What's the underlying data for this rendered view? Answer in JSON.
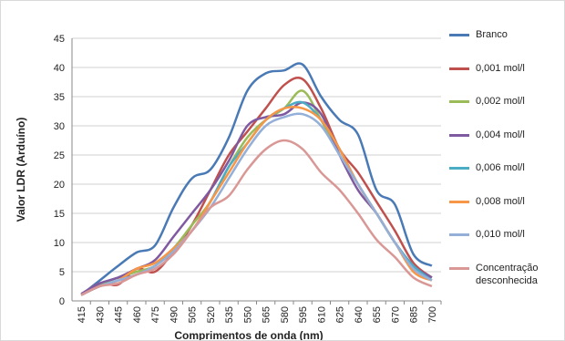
{
  "chart_data": {
    "type": "line",
    "x_label": "Comprimentos de onda (nm)",
    "y_label": "Valor LDR (Arduíno)",
    "categories": [
      "415",
      "430",
      "445",
      "460",
      "475",
      "490",
      "505",
      "520",
      "535",
      "550",
      "565",
      "580",
      "595",
      "610",
      "625",
      "640",
      "655",
      "670",
      "685",
      "700"
    ],
    "ylim": [
      0,
      45
    ],
    "yticks": [
      0,
      5,
      10,
      15,
      20,
      25,
      30,
      35,
      40,
      45
    ],
    "grid": true,
    "series": [
      {
        "name": "Branco",
        "color": "#4a7ab5",
        "values": [
          1,
          3.5,
          6,
          8.3,
          9.5,
          16,
          21,
          22.5,
          28,
          36,
          39,
          39.5,
          40.5,
          35,
          31,
          28.5,
          19,
          16.5,
          8,
          6
        ]
      },
      {
        "name": "0,001 mol/l",
        "color": "#c0504d",
        "values": [
          1,
          3,
          2.8,
          5.5,
          5,
          8.5,
          13,
          19,
          25,
          29,
          33,
          37,
          38,
          33,
          26,
          22,
          17,
          12,
          6.5,
          4
        ]
      },
      {
        "name": "0,002 mol/l",
        "color": "#9bbb59",
        "values": [
          1,
          2.8,
          4,
          5,
          6,
          9,
          13,
          17,
          23,
          28,
          31,
          33,
          36,
          31,
          25,
          20,
          15,
          10,
          6,
          4
        ]
      },
      {
        "name": "0,004 mol/l",
        "color": "#7f5aa1",
        "values": [
          1.2,
          3,
          4,
          5.5,
          7,
          11,
          15,
          19,
          24,
          30,
          31.5,
          32,
          34,
          32,
          25,
          19,
          15,
          10,
          6,
          4
        ]
      },
      {
        "name": "0,006 mol/l",
        "color": "#4bacc6",
        "values": [
          1,
          2.5,
          3.5,
          4.5,
          6,
          9,
          12,
          17,
          23,
          27,
          31,
          33,
          34,
          31,
          26,
          20,
          15,
          10,
          6,
          3.5
        ]
      },
      {
        "name": "0,008 mol/l",
        "color": "#f79646",
        "values": [
          1,
          2.5,
          3.5,
          5.5,
          6.5,
          9,
          12,
          17,
          22,
          27,
          31,
          33,
          33,
          31,
          26,
          20,
          15,
          10,
          5,
          3.5
        ]
      },
      {
        "name": "0,010 mol/l",
        "color": "#94afd8",
        "values": [
          1,
          2.5,
          3.5,
          4.5,
          6,
          8.5,
          12,
          16,
          21,
          26,
          30,
          31.5,
          32,
          30,
          25,
          20,
          15,
          10,
          5.5,
          3.5
        ]
      },
      {
        "name": "Concentração desconhecida",
        "color": "#d99795",
        "values": [
          1,
          2.5,
          3,
          4.5,
          5.5,
          8,
          12,
          16,
          18,
          22.5,
          26,
          27.5,
          26,
          22,
          19,
          15,
          10.5,
          7.5,
          4,
          2.5
        ]
      }
    ]
  }
}
